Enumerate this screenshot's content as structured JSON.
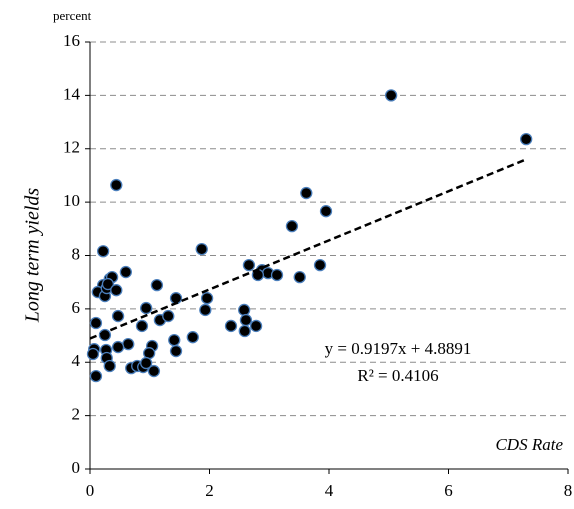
{
  "chart_data": {
    "type": "scatter",
    "unit_label": "percent",
    "y_label": "Long term yields",
    "x_label": "CDS Rate",
    "equation": "y = 0.9197x + 4.8891",
    "r_squared": "R² = 0.4106",
    "trendline": {
      "slope": 0.9197,
      "intercept": 4.8891,
      "x": [
        0,
        7.3
      ]
    },
    "color": "#000000",
    "edge_color": "#4a7ebb",
    "x": [
      5.04,
      7.3,
      0.44,
      3.62,
      3.95,
      3.38,
      0.22,
      1.87,
      2.66,
      3.85,
      0.6,
      0.33,
      0.22,
      0.13,
      0.25,
      0.28,
      0.37,
      0.3,
      0.44,
      1.12,
      2.88,
      2.98,
      3.13,
      2.81,
      3.51,
      1.96,
      1.44,
      1.93,
      2.58,
      0.94,
      0.47,
      2.61,
      1.17,
      1.31,
      1.72,
      0.1,
      0.25,
      0.87,
      2.36,
      2.78,
      2.59,
      1.41,
      1.44,
      1.04,
      0.64,
      0.47,
      0.27,
      0.07,
      0.05,
      0.28,
      0.99,
      0.33,
      0.69,
      0.79,
      0.89,
      1.07,
      0.1,
      0.94
    ],
    "values": [
      14.0,
      12.36,
      10.64,
      10.34,
      9.66,
      9.1,
      8.16,
      8.24,
      7.64,
      7.64,
      7.38,
      7.12,
      6.89,
      6.63,
      6.48,
      6.78,
      7.19,
      6.93,
      6.7,
      6.89,
      7.45,
      7.34,
      7.27,
      7.27,
      7.19,
      6.4,
      6.4,
      5.96,
      5.96,
      6.03,
      5.73,
      5.58,
      5.58,
      5.73,
      4.94,
      5.47,
      5.02,
      5.36,
      5.36,
      5.36,
      5.17,
      4.83,
      4.42,
      4.61,
      4.68,
      4.57,
      4.46,
      4.49,
      4.31,
      4.16,
      4.34,
      3.86,
      3.78,
      3.86,
      3.82,
      3.67,
      3.48,
      3.97
    ],
    "xlim": [
      0,
      8
    ],
    "xticks": [
      0,
      2,
      4,
      6,
      8
    ],
    "ylim": [
      0,
      16
    ],
    "yticks": [
      0,
      2,
      4,
      6,
      8,
      10,
      12,
      14,
      16
    ],
    "grid": true
  }
}
